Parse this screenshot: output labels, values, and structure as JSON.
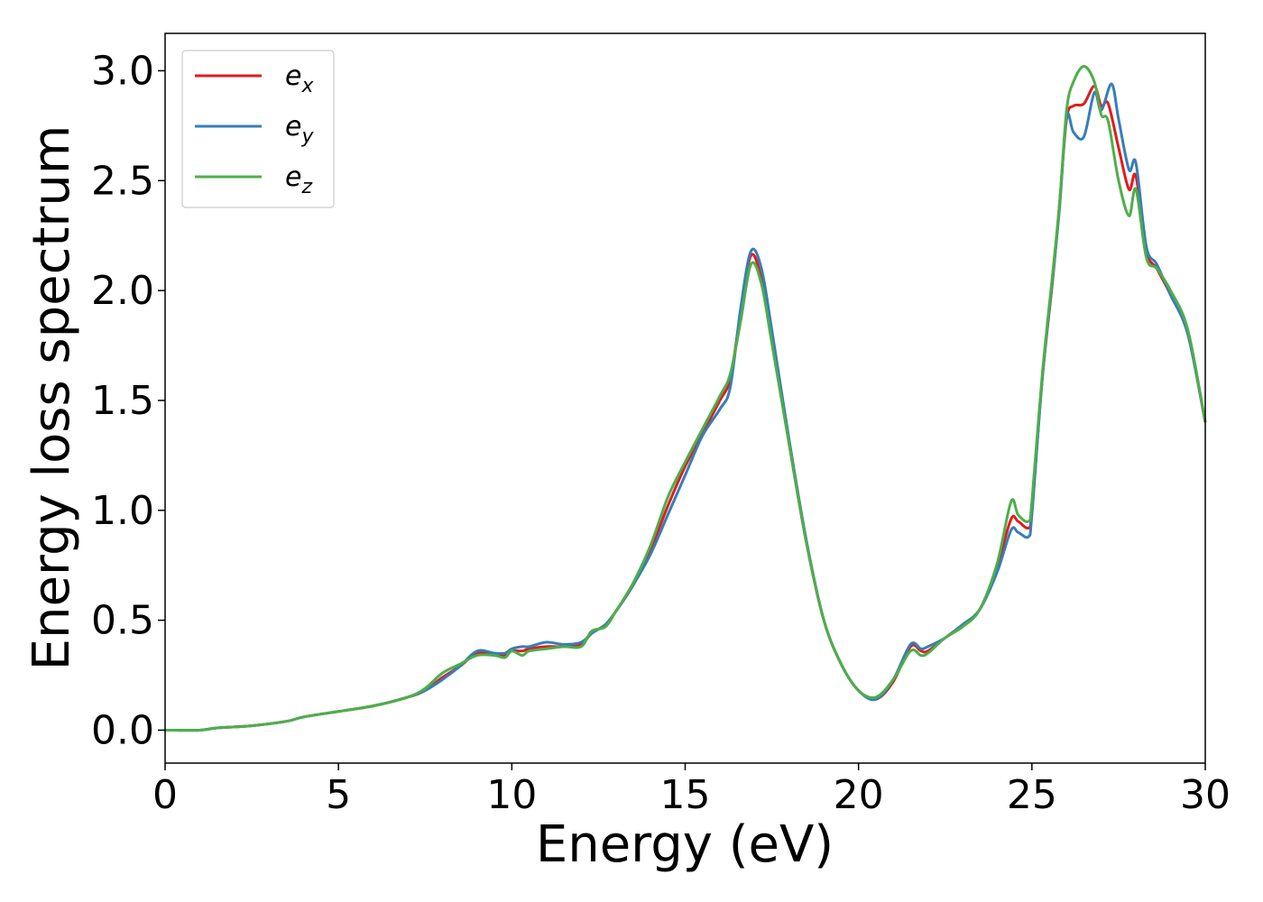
{
  "chart_data": {
    "type": "line",
    "xlabel": "Energy (eV)",
    "ylabel": "Energy loss spectrum",
    "xlim": [
      0,
      30
    ],
    "ylim": [
      -0.15,
      3.17
    ],
    "xticks": [
      "0",
      "5",
      "10",
      "15",
      "20",
      "25",
      "30"
    ],
    "yticks": [
      "0.0",
      "0.5",
      "1.0",
      "1.5",
      "2.0",
      "2.5",
      "3.0"
    ],
    "grid": false,
    "legend_position": "top-left",
    "series": [
      {
        "name": "e_x",
        "label_base": "e",
        "label_sub": "x",
        "color": "#e41a1c",
        "points": [
          [
            0,
            0
          ],
          [
            1,
            0
          ],
          [
            1.5,
            0.01
          ],
          [
            2.5,
            0.02
          ],
          [
            3.5,
            0.04
          ],
          [
            4,
            0.06
          ],
          [
            5,
            0.085
          ],
          [
            6,
            0.11
          ],
          [
            7,
            0.15
          ],
          [
            7.5,
            0.18
          ],
          [
            8,
            0.24
          ],
          [
            8.5,
            0.29
          ],
          [
            9,
            0.35
          ],
          [
            9.5,
            0.34
          ],
          [
            9.8,
            0.34
          ],
          [
            10,
            0.36
          ],
          [
            10.3,
            0.36
          ],
          [
            10.5,
            0.37
          ],
          [
            11,
            0.38
          ],
          [
            11.5,
            0.38
          ],
          [
            12,
            0.39
          ],
          [
            12.3,
            0.44
          ],
          [
            12.7,
            0.48
          ],
          [
            13,
            0.54
          ],
          [
            13.5,
            0.66
          ],
          [
            14,
            0.82
          ],
          [
            14.5,
            1.02
          ],
          [
            15,
            1.2
          ],
          [
            15.5,
            1.35
          ],
          [
            16,
            1.5
          ],
          [
            16.3,
            1.6
          ],
          [
            16.6,
            1.9
          ],
          [
            16.9,
            2.16
          ],
          [
            17.2,
            2.05
          ],
          [
            17.5,
            1.78
          ],
          [
            18,
            1.3
          ],
          [
            18.5,
            0.85
          ],
          [
            19,
            0.5
          ],
          [
            19.5,
            0.3
          ],
          [
            20,
            0.18
          ],
          [
            20.5,
            0.14
          ],
          [
            21,
            0.22
          ],
          [
            21.5,
            0.38
          ],
          [
            21.8,
            0.36
          ],
          [
            22,
            0.36
          ],
          [
            22.5,
            0.42
          ],
          [
            23,
            0.48
          ],
          [
            23.5,
            0.55
          ],
          [
            24,
            0.75
          ],
          [
            24.4,
            0.96
          ],
          [
            24.6,
            0.95
          ],
          [
            24.9,
            0.92
          ],
          [
            25,
            1.0
          ],
          [
            25.3,
            1.6
          ],
          [
            25.6,
            2.05
          ],
          [
            25.8,
            2.4
          ],
          [
            26,
            2.78
          ],
          [
            26.2,
            2.84
          ],
          [
            26.5,
            2.85
          ],
          [
            26.8,
            2.93
          ],
          [
            27,
            2.84
          ],
          [
            27.2,
            2.85
          ],
          [
            27.5,
            2.65
          ],
          [
            27.8,
            2.46
          ],
          [
            28,
            2.52
          ],
          [
            28.3,
            2.18
          ],
          [
            28.6,
            2.1
          ],
          [
            29,
            1.98
          ],
          [
            29.5,
            1.8
          ],
          [
            30,
            1.4
          ]
        ]
      },
      {
        "name": "e_y",
        "label_base": "e",
        "label_sub": "y",
        "color": "#377eb8",
        "points": [
          [
            0,
            0
          ],
          [
            1,
            0
          ],
          [
            1.5,
            0.01
          ],
          [
            2.5,
            0.02
          ],
          [
            3.5,
            0.04
          ],
          [
            4,
            0.06
          ],
          [
            5,
            0.085
          ],
          [
            6,
            0.11
          ],
          [
            7,
            0.15
          ],
          [
            7.5,
            0.18
          ],
          [
            8,
            0.23
          ],
          [
            8.5,
            0.29
          ],
          [
            9,
            0.36
          ],
          [
            9.5,
            0.35
          ],
          [
            9.8,
            0.35
          ],
          [
            10,
            0.37
          ],
          [
            10.3,
            0.38
          ],
          [
            10.5,
            0.38
          ],
          [
            11,
            0.4
          ],
          [
            11.5,
            0.39
          ],
          [
            12,
            0.4
          ],
          [
            12.3,
            0.44
          ],
          [
            12.7,
            0.48
          ],
          [
            13,
            0.54
          ],
          [
            13.5,
            0.66
          ],
          [
            14,
            0.8
          ],
          [
            14.5,
            0.98
          ],
          [
            15,
            1.16
          ],
          [
            15.5,
            1.34
          ],
          [
            16,
            1.46
          ],
          [
            16.3,
            1.56
          ],
          [
            16.6,
            1.92
          ],
          [
            16.9,
            2.18
          ],
          [
            17.2,
            2.1
          ],
          [
            17.5,
            1.82
          ],
          [
            18,
            1.32
          ],
          [
            18.5,
            0.86
          ],
          [
            19,
            0.5
          ],
          [
            19.5,
            0.3
          ],
          [
            20,
            0.18
          ],
          [
            20.5,
            0.14
          ],
          [
            21,
            0.23
          ],
          [
            21.5,
            0.39
          ],
          [
            21.8,
            0.37
          ],
          [
            22,
            0.38
          ],
          [
            22.5,
            0.42
          ],
          [
            23,
            0.48
          ],
          [
            23.5,
            0.55
          ],
          [
            24,
            0.72
          ],
          [
            24.4,
            0.91
          ],
          [
            24.6,
            0.9
          ],
          [
            24.9,
            0.88
          ],
          [
            25,
            0.98
          ],
          [
            25.3,
            1.6
          ],
          [
            25.6,
            2.06
          ],
          [
            25.8,
            2.38
          ],
          [
            26,
            2.79
          ],
          [
            26.2,
            2.72
          ],
          [
            26.5,
            2.7
          ],
          [
            26.8,
            2.9
          ],
          [
            27,
            2.82
          ],
          [
            27.3,
            2.94
          ],
          [
            27.5,
            2.78
          ],
          [
            27.8,
            2.55
          ],
          [
            28,
            2.58
          ],
          [
            28.3,
            2.2
          ],
          [
            28.6,
            2.12
          ],
          [
            29,
            1.98
          ],
          [
            29.5,
            1.8
          ],
          [
            30,
            1.4
          ]
        ]
      },
      {
        "name": "e_z",
        "label_base": "e",
        "label_sub": "z",
        "color": "#4daf4a",
        "points": [
          [
            0,
            0
          ],
          [
            1,
            0
          ],
          [
            1.5,
            0.01
          ],
          [
            2.5,
            0.02
          ],
          [
            3.5,
            0.04
          ],
          [
            4,
            0.06
          ],
          [
            5,
            0.085
          ],
          [
            6,
            0.11
          ],
          [
            7,
            0.15
          ],
          [
            7.5,
            0.19
          ],
          [
            8,
            0.26
          ],
          [
            8.5,
            0.3
          ],
          [
            9,
            0.34
          ],
          [
            9.5,
            0.34
          ],
          [
            9.8,
            0.33
          ],
          [
            10,
            0.36
          ],
          [
            10.3,
            0.34
          ],
          [
            10.5,
            0.36
          ],
          [
            11,
            0.37
          ],
          [
            11.5,
            0.38
          ],
          [
            12,
            0.38
          ],
          [
            12.3,
            0.45
          ],
          [
            12.7,
            0.47
          ],
          [
            13,
            0.54
          ],
          [
            13.5,
            0.67
          ],
          [
            14,
            0.84
          ],
          [
            14.5,
            1.06
          ],
          [
            15,
            1.22
          ],
          [
            15.5,
            1.37
          ],
          [
            16,
            1.52
          ],
          [
            16.3,
            1.62
          ],
          [
            16.6,
            1.86
          ],
          [
            16.9,
            2.12
          ],
          [
            17.2,
            2.03
          ],
          [
            17.5,
            1.76
          ],
          [
            18,
            1.3
          ],
          [
            18.5,
            0.85
          ],
          [
            19,
            0.5
          ],
          [
            19.5,
            0.3
          ],
          [
            20,
            0.18
          ],
          [
            20.5,
            0.15
          ],
          [
            21,
            0.23
          ],
          [
            21.5,
            0.36
          ],
          [
            21.8,
            0.34
          ],
          [
            22,
            0.35
          ],
          [
            22.5,
            0.42
          ],
          [
            23,
            0.47
          ],
          [
            23.5,
            0.55
          ],
          [
            24,
            0.76
          ],
          [
            24.4,
            1.04
          ],
          [
            24.6,
            0.98
          ],
          [
            24.9,
            0.95
          ],
          [
            25,
            1.04
          ],
          [
            25.3,
            1.62
          ],
          [
            25.6,
            2.08
          ],
          [
            25.8,
            2.4
          ],
          [
            26,
            2.82
          ],
          [
            26.2,
            2.95
          ],
          [
            26.5,
            3.02
          ],
          [
            26.8,
            2.95
          ],
          [
            27,
            2.8
          ],
          [
            27.2,
            2.77
          ],
          [
            27.5,
            2.5
          ],
          [
            27.8,
            2.34
          ],
          [
            28,
            2.46
          ],
          [
            28.3,
            2.15
          ],
          [
            28.6,
            2.1
          ],
          [
            29,
            2.0
          ],
          [
            29.5,
            1.82
          ],
          [
            30,
            1.4
          ]
        ]
      }
    ]
  }
}
